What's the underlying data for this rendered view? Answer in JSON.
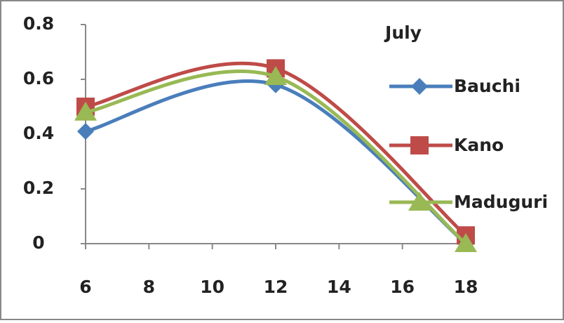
{
  "chart_data": {
    "type": "line",
    "title": "July",
    "x": [
      6,
      12,
      18
    ],
    "series": [
      {
        "name": "Bauchi",
        "color": "#4a7ebb",
        "marker": "diamond",
        "values": [
          0.41,
          0.58,
          0.0
        ]
      },
      {
        "name": "Kano",
        "color": "#be4b48",
        "marker": "square",
        "values": [
          0.5,
          0.64,
          0.03
        ]
      },
      {
        "name": "Maduguri",
        "color": "#98b954",
        "marker": "triangle",
        "values": [
          0.48,
          0.61,
          0.0
        ]
      }
    ],
    "xlim": [
      6,
      18
    ],
    "xticks": [
      6,
      8,
      10,
      12,
      14,
      16,
      18
    ],
    "ylim": [
      0,
      0.8
    ],
    "yticks": [
      0,
      0.2,
      0.4,
      0.6,
      0.8
    ],
    "grid": false,
    "smooth": true,
    "legend": "right"
  }
}
